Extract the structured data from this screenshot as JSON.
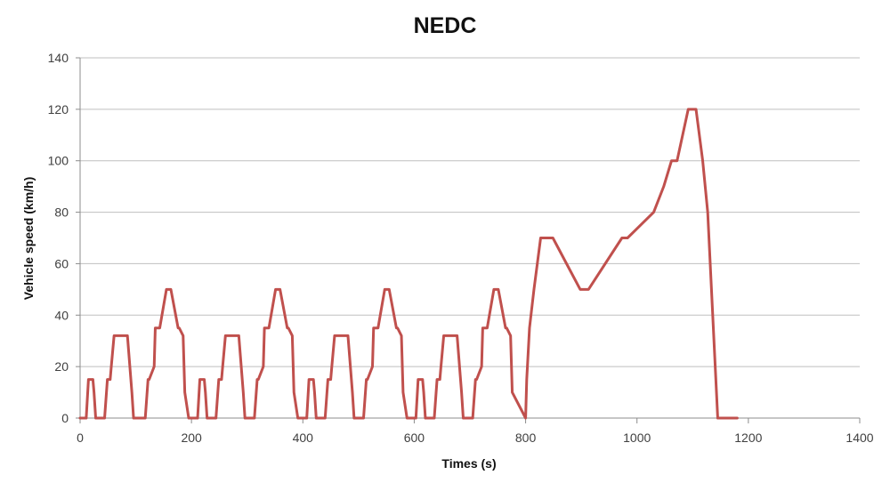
{
  "chart_data": {
    "type": "line",
    "title": "NEDC",
    "xlabel": "Times (s)",
    "ylabel": "Vehicle speed (km/h)",
    "xlim": [
      0,
      1400
    ],
    "ylim": [
      0,
      140
    ],
    "grid": "horizontal",
    "line_color": "#c0504d",
    "axis_color": "#8c8c8c",
    "grid_color": "#bfbfbf",
    "x_ticks": [
      0,
      200,
      400,
      600,
      800,
      1000,
      1200,
      1400
    ],
    "y_ticks": [
      0,
      20,
      40,
      60,
      80,
      100,
      120,
      140
    ],
    "x_tick_labels": [
      "0",
      "200",
      "400",
      "600",
      "800",
      "1000",
      "1200",
      "1400"
    ],
    "y_tick_labels": [
      "0",
      "20",
      "40",
      "60",
      "80",
      "100",
      "120",
      "140"
    ],
    "series": [
      {
        "name": "",
        "x": [
          0,
          11,
          15,
          23,
          25,
          28,
          44,
          49,
          54,
          56,
          61,
          85,
          93,
          96,
          117,
          122,
          124,
          133,
          135,
          143,
          155,
          163,
          176,
          178,
          185,
          188,
          195,
          211,
          215,
          223,
          225,
          228,
          244,
          249,
          254,
          256,
          261,
          285,
          293,
          296,
          313,
          318,
          320,
          329,
          331,
          339,
          351,
          359,
          372,
          374,
          381,
          384,
          391,
          407,
          411,
          419,
          421,
          424,
          440,
          445,
          450,
          452,
          457,
          481,
          489,
          492,
          509,
          514,
          516,
          525,
          527,
          535,
          547,
          555,
          568,
          570,
          577,
          580,
          587,
          603,
          607,
          615,
          617,
          620,
          636,
          641,
          646,
          648,
          653,
          677,
          685,
          688,
          705,
          710,
          712,
          721,
          723,
          731,
          743,
          751,
          764,
          766,
          773,
          776,
          800,
          802,
          807,
          815,
          827,
          849,
          898,
          905,
          913,
          973,
          983,
          1030,
          1048,
          1062,
          1072,
          1092,
          1106,
          1118,
          1127,
          1145,
          1152,
          1163,
          1180
        ],
        "y": [
          0,
          0,
          15,
          15,
          10,
          0,
          0,
          15,
          15,
          20,
          32,
          32,
          10,
          0,
          0,
          15,
          15,
          20,
          35,
          35,
          50,
          50,
          35,
          35,
          32,
          10,
          0,
          0,
          15,
          15,
          10,
          0,
          0,
          15,
          15,
          20,
          32,
          32,
          10,
          0,
          0,
          15,
          15,
          20,
          35,
          35,
          50,
          50,
          35,
          35,
          32,
          10,
          0,
          0,
          15,
          15,
          10,
          0,
          0,
          15,
          15,
          20,
          32,
          32,
          10,
          0,
          0,
          15,
          15,
          20,
          35,
          35,
          50,
          50,
          35,
          35,
          32,
          10,
          0,
          0,
          15,
          15,
          10,
          0,
          0,
          15,
          15,
          20,
          32,
          32,
          10,
          0,
          0,
          15,
          15,
          20,
          35,
          35,
          50,
          50,
          35,
          35,
          32,
          10,
          0,
          15,
          35,
          50,
          70,
          70,
          50,
          50,
          50,
          70,
          70,
          80,
          90,
          100,
          100,
          120,
          120,
          100,
          80,
          0,
          0,
          0,
          0
        ]
      }
    ]
  }
}
